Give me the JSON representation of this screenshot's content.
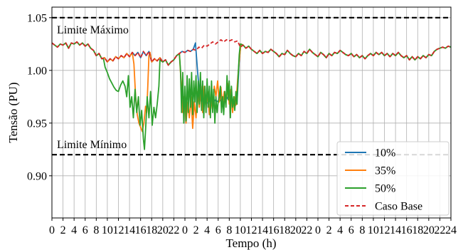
{
  "chart_data": {
    "type": "line",
    "xlabel": "Tempo (h)",
    "ylabel": "Tensão (PU)",
    "ylim": [
      0.86,
      1.06
    ],
    "xlim": [
      0,
      72
    ],
    "x_ticks": [
      0,
      2,
      4,
      6,
      8,
      10,
      12,
      14,
      16,
      18,
      20,
      22,
      24,
      26,
      28,
      30,
      32,
      34,
      36,
      38,
      40,
      42,
      44,
      46,
      48,
      50,
      52,
      54,
      56,
      58,
      60,
      62,
      64,
      66,
      68,
      70,
      72
    ],
    "x_tick_labels": [
      "0",
      "2",
      "4",
      "6",
      "8",
      "10",
      "12",
      "14",
      "16",
      "18",
      "20",
      "22",
      "0",
      "2",
      "4",
      "6",
      "8",
      "10",
      "12",
      "14",
      "16",
      "18",
      "20",
      "22",
      "0",
      "2",
      "4",
      "6",
      "8",
      "10",
      "12",
      "14",
      "16",
      "18",
      "20",
      "22",
      "24"
    ],
    "y_ticks": [
      0.9,
      0.95,
      1.0,
      1.05
    ],
    "y_tick_labels": [
      "0.90",
      "0.95",
      "1.00",
      "1.05"
    ],
    "grid": true,
    "legend_position": "bottom-right",
    "reference_lines": [
      {
        "label": "Limite Máximo",
        "y": 1.05
      },
      {
        "label": "Limite Mínimo",
        "y": 0.92
      }
    ],
    "base": [
      [
        0,
        1.026
      ],
      [
        0.5,
        1.024
      ],
      [
        1,
        1.022
      ],
      [
        1.5,
        1.025
      ],
      [
        2,
        1.024
      ],
      [
        2.5,
        1.026
      ],
      [
        3,
        1.021
      ],
      [
        3.5,
        1.026
      ],
      [
        4,
        1.025
      ],
      [
        4.5,
        1.027
      ],
      [
        5,
        1.024
      ],
      [
        5.5,
        1.026
      ],
      [
        6,
        1.023
      ],
      [
        6.5,
        1.025
      ],
      [
        7,
        1.021
      ],
      [
        7.5,
        1.019
      ],
      [
        8,
        1.014
      ],
      [
        8.5,
        1.016
      ],
      [
        9,
        1.011
      ],
      [
        9.5,
        1.012
      ],
      [
        10,
        1.008
      ],
      [
        10.5,
        1.011
      ],
      [
        11,
        1.009
      ],
      [
        11.5,
        1.013
      ],
      [
        12,
        1.011
      ],
      [
        12.5,
        1.014
      ],
      [
        13,
        1.012
      ],
      [
        13.5,
        1.016
      ],
      [
        14,
        1.013
      ],
      [
        14.5,
        1.017
      ],
      [
        15,
        1.014
      ],
      [
        15.5,
        1.017
      ],
      [
        16,
        1.012
      ],
      [
        16.5,
        1.018
      ],
      [
        17,
        1.014
      ],
      [
        17.5,
        1.018
      ],
      [
        18,
        1.008
      ],
      [
        18.5,
        1.011
      ],
      [
        19,
        1.009
      ],
      [
        19.5,
        1.012
      ],
      [
        20,
        1.008
      ],
      [
        20.5,
        1.01
      ],
      [
        21,
        1.005
      ],
      [
        21.5,
        1.008
      ],
      [
        22,
        1.01
      ],
      [
        22.5,
        1.014
      ],
      [
        23,
        1.016
      ],
      [
        23.5,
        1.018
      ],
      [
        24,
        1.017
      ],
      [
        24.5,
        1.019
      ],
      [
        25,
        1.018
      ],
      [
        25.5,
        1.02
      ],
      [
        26,
        1.019
      ],
      [
        26.5,
        1.022
      ],
      [
        27,
        1.021
      ],
      [
        27.5,
        1.024
      ],
      [
        28,
        1.023
      ],
      [
        28.5,
        1.025
      ],
      [
        29,
        1.027
      ],
      [
        29.5,
        1.025
      ],
      [
        30,
        1.027
      ],
      [
        30.5,
        1.029
      ],
      [
        31,
        1.027
      ],
      [
        31.5,
        1.029
      ],
      [
        32,
        1.028
      ],
      [
        32.5,
        1.029
      ],
      [
        33,
        1.027
      ],
      [
        33.5,
        1.028
      ],
      [
        34,
        1.022
      ],
      [
        34.5,
        1.024
      ],
      [
        35,
        1.021
      ],
      [
        35.5,
        1.023
      ],
      [
        36,
        1.02
      ],
      [
        36.5,
        1.018
      ],
      [
        37,
        1.016
      ],
      [
        37.5,
        1.019
      ],
      [
        38,
        1.016
      ],
      [
        38.5,
        1.018
      ],
      [
        39,
        1.017
      ],
      [
        39.5,
        1.02
      ],
      [
        40,
        1.018
      ],
      [
        40.5,
        1.016
      ],
      [
        41,
        1.013
      ],
      [
        41.5,
        1.016
      ],
      [
        42,
        1.015
      ],
      [
        42.5,
        1.019
      ],
      [
        43,
        1.016
      ],
      [
        43.5,
        1.014
      ],
      [
        44,
        1.013
      ],
      [
        44.5,
        1.016
      ],
      [
        45,
        1.014
      ],
      [
        45.5,
        1.018
      ],
      [
        46,
        1.016
      ],
      [
        46.5,
        1.02
      ],
      [
        47,
        1.017
      ],
      [
        47.5,
        1.015
      ],
      [
        48,
        1.013
      ],
      [
        48.5,
        1.017
      ],
      [
        49,
        1.015
      ],
      [
        49.5,
        1.012
      ],
      [
        50,
        1.016
      ],
      [
        50.5,
        1.014
      ],
      [
        51,
        1.017
      ],
      [
        51.5,
        1.016
      ],
      [
        52,
        1.019
      ],
      [
        52.5,
        1.017
      ],
      [
        53,
        1.015
      ],
      [
        53.5,
        1.014
      ],
      [
        54,
        1.016
      ],
      [
        54.5,
        1.013
      ],
      [
        55,
        1.015
      ],
      [
        55.5,
        1.012
      ],
      [
        56,
        1.014
      ],
      [
        56.5,
        1.011
      ],
      [
        57,
        1.014
      ],
      [
        57.5,
        1.016
      ],
      [
        58,
        1.014
      ],
      [
        58.5,
        1.017
      ],
      [
        59,
        1.015
      ],
      [
        59.5,
        1.017
      ],
      [
        60,
        1.014
      ],
      [
        60.5,
        1.016
      ],
      [
        61,
        1.013
      ],
      [
        61.5,
        1.016
      ],
      [
        62,
        1.014
      ],
      [
        62.5,
        1.017
      ],
      [
        63,
        1.014
      ],
      [
        63.5,
        1.012
      ],
      [
        64,
        1.014
      ],
      [
        64.5,
        1.01
      ],
      [
        65,
        1.013
      ],
      [
        65.5,
        1.01
      ],
      [
        66,
        1.013
      ],
      [
        66.5,
        1.011
      ],
      [
        67,
        1.014
      ],
      [
        67.5,
        1.012
      ],
      [
        68,
        1.015
      ],
      [
        68.5,
        1.014
      ],
      [
        69,
        1.018
      ],
      [
        69.5,
        1.02
      ],
      [
        70,
        1.021
      ],
      [
        70.5,
        1.022
      ],
      [
        71,
        1.021
      ],
      [
        71.5,
        1.023
      ],
      [
        72,
        1.022
      ]
    ],
    "series": [
      {
        "name": "10%",
        "color": "#1f77b4",
        "dash": false,
        "deviations": [
          [
            [
              25.9,
              1.026
            ],
            [
              26.3,
              0.998
            ],
            [
              26.7,
              0.975
            ],
            [
              27.0,
              0.97
            ],
            [
              27.5,
              0.972
            ],
            [
              28.0,
              0.969
            ],
            [
              28.5,
              0.971
            ],
            [
              29.0,
              0.969
            ],
            [
              29.5,
              0.972
            ],
            [
              30.0,
              0.97
            ],
            [
              30.5,
              0.972
            ],
            [
              31.0,
              0.969
            ],
            [
              31.5,
              0.975
            ],
            [
              32.0,
              0.971
            ],
            [
              32.5,
              0.972
            ],
            [
              33.0,
              0.97
            ],
            [
              33.4,
              0.968
            ],
            [
              33.8,
              1.01
            ],
            [
              34.1,
              1.025
            ]
          ]
        ]
      },
      {
        "name": "35%",
        "color": "#ff7f0e",
        "dash": false,
        "deviations": [
          [
            [
              14.5,
              1.017
            ],
            [
              14.8,
              1.006
            ],
            [
              15.1,
              0.975
            ],
            [
              15.4,
              0.958
            ],
            [
              15.7,
              0.95
            ],
            [
              16.0,
              0.946
            ],
            [
              16.3,
              0.942
            ],
            [
              16.6,
              0.95
            ],
            [
              16.9,
              0.966
            ],
            [
              17.1,
              0.96
            ],
            [
              17.3,
              0.985
            ],
            [
              17.5,
              1.014
            ],
            [
              17.7,
              1.017
            ]
          ],
          [
            [
              23.0,
              1.016
            ],
            [
              23.3,
              0.99
            ],
            [
              23.6,
              0.96
            ],
            [
              23.9,
              0.975
            ],
            [
              24.2,
              0.95
            ],
            [
              24.5,
              0.97
            ],
            [
              24.8,
              0.955
            ],
            [
              25.1,
              0.975
            ],
            [
              25.4,
              0.945
            ],
            [
              25.7,
              0.97
            ],
            [
              26.0,
              0.955
            ],
            [
              26.3,
              0.98
            ],
            [
              26.6,
              0.965
            ],
            [
              26.9,
              0.985
            ],
            [
              27.2,
              0.96
            ],
            [
              27.5,
              0.985
            ],
            [
              27.8,
              0.965
            ],
            [
              28.1,
              0.98
            ],
            [
              28.4,
              0.958
            ],
            [
              28.7,
              0.972
            ],
            [
              29.0,
              0.962
            ],
            [
              29.3,
              0.985
            ],
            [
              29.6,
              0.975
            ],
            [
              29.9,
              0.99
            ],
            [
              30.2,
              0.97
            ],
            [
              30.5,
              0.984
            ],
            [
              30.8,
              0.967
            ],
            [
              31.1,
              0.98
            ],
            [
              31.4,
              0.97
            ],
            [
              31.7,
              0.988
            ],
            [
              32.0,
              0.968
            ],
            [
              32.3,
              0.982
            ],
            [
              32.6,
              0.96
            ],
            [
              32.9,
              0.975
            ],
            [
              33.2,
              0.967
            ],
            [
              33.5,
              0.99
            ],
            [
              33.8,
              1.01
            ],
            [
              34.1,
              1.025
            ]
          ]
        ]
      },
      {
        "name": "50%",
        "color": "#2ca02c",
        "dash": false,
        "deviations": [
          [
            [
              9.3,
              1.011
            ],
            [
              9.6,
              1.003
            ],
            [
              10.0,
              0.998
            ],
            [
              10.4,
              0.992
            ],
            [
              10.8,
              0.988
            ],
            [
              11.2,
              0.984
            ],
            [
              11.6,
              0.981
            ],
            [
              12.0,
              0.98
            ],
            [
              12.4,
              0.986
            ],
            [
              12.8,
              0.99
            ],
            [
              13.2,
              0.985
            ],
            [
              13.5,
              0.975
            ],
            [
              13.8,
              0.995
            ],
            [
              14.1,
              0.965
            ],
            [
              14.4,
              0.975
            ],
            [
              14.7,
              0.955
            ],
            [
              15.0,
              0.982
            ],
            [
              15.3,
              0.96
            ],
            [
              15.6,
              0.975
            ],
            [
              15.9,
              0.948
            ],
            [
              16.2,
              0.962
            ],
            [
              16.5,
              0.935
            ],
            [
              16.7,
              0.925
            ],
            [
              16.9,
              0.944
            ],
            [
              17.2,
              0.975
            ],
            [
              17.5,
              0.955
            ],
            [
              17.8,
              0.98
            ],
            [
              18.1,
              0.948
            ],
            [
              18.4,
              0.965
            ],
            [
              18.7,
              0.955
            ],
            [
              19.0,
              0.968
            ],
            [
              19.3,
              0.985
            ],
            [
              19.5,
              1.01
            ]
          ],
          [
            [
              23.0,
              1.016
            ],
            [
              23.2,
              1.0
            ],
            [
              23.4,
              0.96
            ],
            [
              23.6,
              0.998
            ],
            [
              23.8,
              0.95
            ],
            [
              24.0,
              0.985
            ],
            [
              24.2,
              0.952
            ],
            [
              24.4,
              0.995
            ],
            [
              24.6,
              0.96
            ],
            [
              24.8,
              0.992
            ],
            [
              25.0,
              0.965
            ],
            [
              25.2,
              0.998
            ],
            [
              25.4,
              0.958
            ],
            [
              25.6,
              0.99
            ],
            [
              25.8,
              0.97
            ],
            [
              26.0,
              0.995
            ],
            [
              26.2,
              0.96
            ],
            [
              26.4,
              0.99
            ],
            [
              26.6,
              0.968
            ],
            [
              26.8,
              0.998
            ],
            [
              27.0,
              0.962
            ],
            [
              27.2,
              0.99
            ],
            [
              27.4,
              0.955
            ],
            [
              27.6,
              0.985
            ],
            [
              27.8,
              0.96
            ],
            [
              28.0,
              0.992
            ],
            [
              28.2,
              0.965
            ],
            [
              28.4,
              0.985
            ],
            [
              28.6,
              0.955
            ],
            [
              28.8,
              0.99
            ],
            [
              29.0,
              0.96
            ],
            [
              29.2,
              0.982
            ],
            [
              29.4,
              0.95
            ],
            [
              29.6,
              0.975
            ],
            [
              29.8,
              0.96
            ],
            [
              30.0,
              0.97
            ],
            [
              30.2,
              0.975
            ],
            [
              30.4,
              0.985
            ],
            [
              30.6,
              0.96
            ],
            [
              30.8,
              0.975
            ],
            [
              31.0,
              0.958
            ],
            [
              31.2,
              0.98
            ],
            [
              31.4,
              0.965
            ],
            [
              31.6,
              0.995
            ],
            [
              31.8,
              0.972
            ],
            [
              32.0,
              0.99
            ],
            [
              32.2,
              0.955
            ],
            [
              32.4,
              0.985
            ],
            [
              32.6,
              0.965
            ],
            [
              32.8,
              0.975
            ],
            [
              33.0,
              0.962
            ],
            [
              33.2,
              0.98
            ],
            [
              33.4,
              0.968
            ],
            [
              33.6,
              0.995
            ],
            [
              33.8,
              1.015
            ],
            [
              34.0,
              1.025
            ]
          ]
        ]
      },
      {
        "name": "Caso Base",
        "color": "#d62728",
        "dash": true,
        "deviations": []
      }
    ]
  }
}
